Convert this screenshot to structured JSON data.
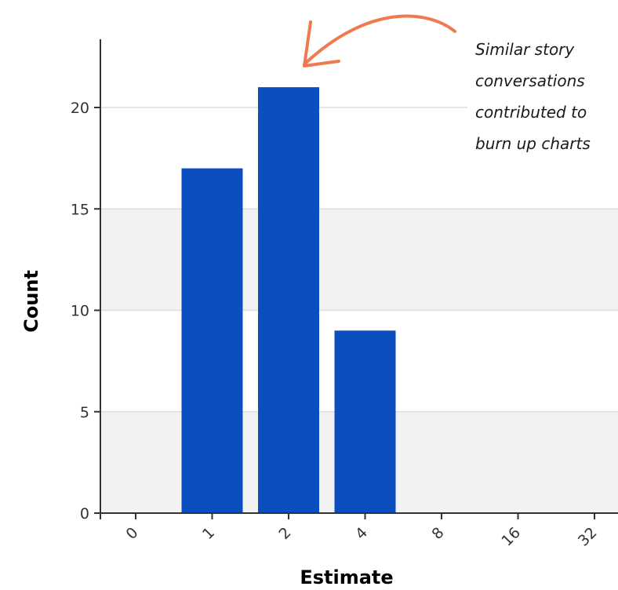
{
  "chart_data": {
    "type": "bar",
    "xlabel": "Estimate",
    "ylabel": "Count",
    "categories": [
      "0",
      "1",
      "2",
      "4",
      "8",
      "16",
      "32"
    ],
    "values": [
      0,
      17,
      21,
      9,
      0,
      0,
      0
    ],
    "ylim": [
      0,
      23
    ],
    "yticks": [
      0,
      5,
      10,
      15,
      20
    ],
    "grid": "horizontal bands",
    "bar_color": "#0b4fbf",
    "band_color": "#f2f2f2"
  },
  "annotation": {
    "lines": [
      "Similar story",
      "conversations",
      "contributed to",
      "burn up charts"
    ],
    "arrow_color": "#f07a50"
  }
}
